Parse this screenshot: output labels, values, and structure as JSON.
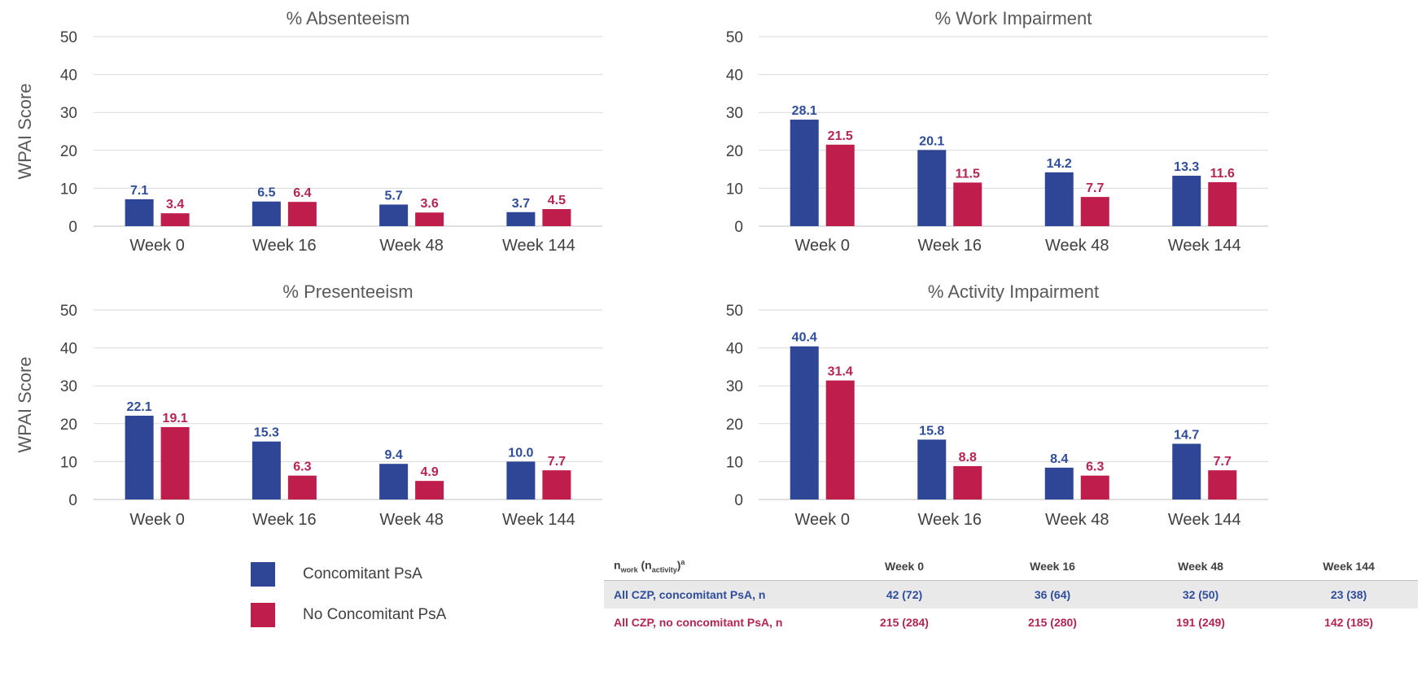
{
  "colors": {
    "concomitant": "#2f4596",
    "no_concomitant": "#bf1d4b",
    "concomitant_label": "#2f4d9a",
    "no_concomitant_label": "#b62551",
    "grid": "#d9d9d9",
    "axis": "#bfbfbf"
  },
  "y_axis_label": "WPAI Score",
  "chart_data": [
    {
      "type": "bar",
      "title": "% Absenteeism",
      "ylabel": "WPAI Score",
      "ylim": [
        0,
        50
      ],
      "yticks": [
        0,
        10,
        20,
        30,
        40,
        50
      ],
      "grid": true,
      "categories": [
        "Week 0",
        "Week 16",
        "Week 48",
        "Week 144"
      ],
      "series": [
        {
          "name": "Concomitant PsA",
          "values": [
            7.1,
            6.5,
            5.7,
            3.7
          ],
          "labels": [
            "7.1",
            "6.5",
            "5.7",
            "3.7"
          ]
        },
        {
          "name": "No Concomitant PsA",
          "values": [
            3.4,
            6.4,
            3.6,
            4.5
          ],
          "labels": [
            "3.4",
            "6.4",
            "3.6",
            "4.5"
          ]
        }
      ]
    },
    {
      "type": "bar",
      "title": "% Work Impairment",
      "ylabel": "",
      "ylim": [
        0,
        50
      ],
      "yticks": [
        0,
        10,
        20,
        30,
        40,
        50
      ],
      "grid": true,
      "categories": [
        "Week 0",
        "Week 16",
        "Week 48",
        "Week 144"
      ],
      "series": [
        {
          "name": "Concomitant PsA",
          "values": [
            28.1,
            20.1,
            14.2,
            13.3
          ],
          "labels": [
            "28.1",
            "20.1",
            "14.2",
            "13.3"
          ]
        },
        {
          "name": "No Concomitant PsA",
          "values": [
            21.5,
            11.5,
            7.7,
            11.6
          ],
          "labels": [
            "21.5",
            "11.5",
            "7.7",
            "11.6"
          ]
        }
      ]
    },
    {
      "type": "bar",
      "title": "% Presenteeism",
      "ylabel": "WPAI Score",
      "ylim": [
        0,
        50
      ],
      "yticks": [
        0,
        10,
        20,
        30,
        40,
        50
      ],
      "grid": true,
      "categories": [
        "Week 0",
        "Week 16",
        "Week 48",
        "Week 144"
      ],
      "series": [
        {
          "name": "Concomitant PsA",
          "values": [
            22.1,
            15.3,
            9.4,
            10.0
          ],
          "labels": [
            "22.1",
            "15.3",
            "9.4",
            "10.0"
          ]
        },
        {
          "name": "No Concomitant PsA",
          "values": [
            19.1,
            6.3,
            4.9,
            7.7
          ],
          "labels": [
            "19.1",
            "6.3",
            "4.9",
            "7.7"
          ]
        }
      ]
    },
    {
      "type": "bar",
      "title": "% Activity Impairment",
      "ylabel": "",
      "ylim": [
        0,
        50
      ],
      "yticks": [
        0,
        10,
        20,
        30,
        40,
        50
      ],
      "grid": true,
      "categories": [
        "Week 0",
        "Week 16",
        "Week 48",
        "Week 144"
      ],
      "series": [
        {
          "name": "Concomitant PsA",
          "values": [
            40.4,
            15.8,
            8.4,
            14.7
          ],
          "labels": [
            "40.4",
            "15.8",
            "8.4",
            "14.7"
          ]
        },
        {
          "name": "No Concomitant PsA",
          "values": [
            31.4,
            8.8,
            6.3,
            7.7
          ],
          "labels": [
            "31.4",
            "8.8",
            "6.3",
            "7.7"
          ]
        }
      ]
    }
  ],
  "legend": {
    "items": [
      {
        "label": "Concomitant PsA"
      },
      {
        "label": "No Concomitant PsA"
      }
    ]
  },
  "table": {
    "header_n": "n",
    "header_sub_work": "work",
    "header_open": " (n",
    "header_sub_activity": "activity",
    "header_close": ")",
    "header_sup": "a",
    "columns": [
      "Week 0",
      "Week 16",
      "Week 48",
      "Week 144"
    ],
    "rows": [
      {
        "label": "All CZP, concomitant PsA, n",
        "values": [
          "42 (72)",
          "36 (64)",
          "32 (50)",
          "23 (38)"
        ]
      },
      {
        "label": "All CZP, no concomitant PsA, n",
        "values": [
          "215 (284)",
          "215 (280)",
          "191 (249)",
          "142 (185)"
        ]
      }
    ]
  }
}
